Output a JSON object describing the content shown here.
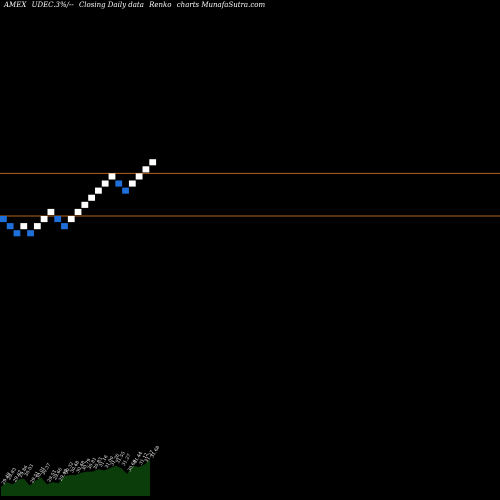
{
  "header": {
    "exchange": "AMEX",
    "symbol": "UDEC.3%/--",
    "description": "Closing Daily data",
    "chart_kind": "Renko",
    "suffix": "charts MunafaSutra.com"
  },
  "colors": {
    "background": "#000000",
    "up_brick": "#ffffff",
    "down_brick": "#1e6fd9",
    "reference_line": "#b8621b",
    "volume_fill": "#0b3d0b",
    "volume_label": "#ffffff"
  },
  "chart_data": {
    "type": "renko",
    "title": "AMEX UDEC.3%/-- Closing Daily data Renko charts MunafaSutra.com",
    "bricks": [
      {
        "dir": "down",
        "level": 0
      },
      {
        "dir": "down",
        "level": -1
      },
      {
        "dir": "down",
        "level": -2
      },
      {
        "dir": "up",
        "level": -1
      },
      {
        "dir": "down",
        "level": -2
      },
      {
        "dir": "up",
        "level": -1
      },
      {
        "dir": "up",
        "level": 0
      },
      {
        "dir": "up",
        "level": 1
      },
      {
        "dir": "down",
        "level": 0
      },
      {
        "dir": "down",
        "level": -1
      },
      {
        "dir": "up",
        "level": 0
      },
      {
        "dir": "up",
        "level": 1
      },
      {
        "dir": "up",
        "level": 2
      },
      {
        "dir": "up",
        "level": 3
      },
      {
        "dir": "up",
        "level": 4
      },
      {
        "dir": "up",
        "level": 5
      },
      {
        "dir": "up",
        "level": 6
      },
      {
        "dir": "down",
        "level": 5
      },
      {
        "dir": "down",
        "level": 4
      },
      {
        "dir": "up",
        "level": 5
      },
      {
        "dir": "up",
        "level": 6
      },
      {
        "dir": "up",
        "level": 7
      },
      {
        "dir": "up",
        "level": 8
      }
    ],
    "reference_levels": [
      6.5,
      0.5
    ],
    "volume_labels": [
      "29.49",
      "29.83",
      "29.67",
      "29.86",
      "30.03",
      "29.51",
      "30.01",
      "30.37",
      "29.53",
      "29.66",
      "29.49",
      "30.32",
      "30.48",
      "30.48",
      "30.79",
      "30.81",
      "30.83",
      "31.16",
      "31.00",
      "31.26",
      "31.55",
      "31.27",
      "30.68",
      "31.44",
      "31.12",
      "31.27",
      "31.68"
    ],
    "volume_values": [
      8,
      12,
      10,
      14,
      15,
      9,
      13,
      16,
      10,
      12,
      11,
      17,
      18,
      18,
      20,
      21,
      21,
      23,
      22,
      24,
      26,
      24,
      19,
      26,
      25,
      27,
      31
    ]
  }
}
